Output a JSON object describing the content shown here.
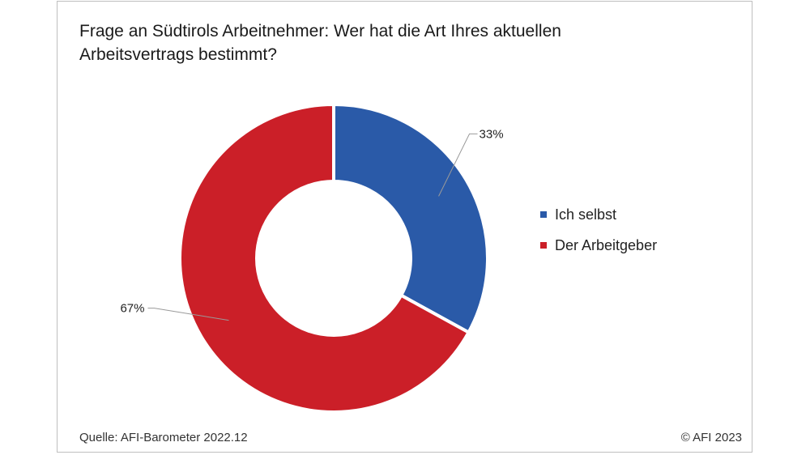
{
  "title": "Frage an Südtirols Arbeitnehmer: Wer hat die Art Ihres aktuellen Arbeitsvertrags bestimmt?",
  "source": "Quelle: AFI-Barometer 2022.12",
  "copyright": "© AFI 2023",
  "chart_data": {
    "type": "pie",
    "variant": "donut",
    "categories": [
      "Ich selbst",
      "Der Arbeitgeber"
    ],
    "values": [
      33,
      67
    ],
    "labels": [
      "33%",
      "67%"
    ],
    "colors": [
      "#2a5aa8",
      "#cb1f28"
    ],
    "legend_position": "right"
  }
}
